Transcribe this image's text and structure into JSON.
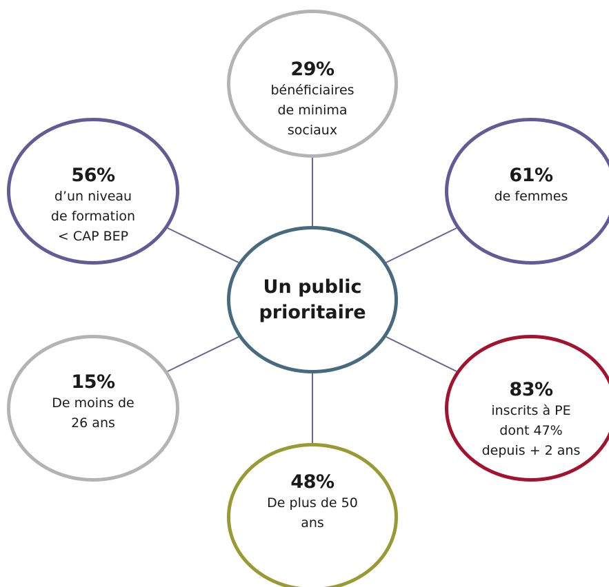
{
  "colors": {
    "connector": "#6a6497",
    "center_border": "#486a7e",
    "purple_border": "#615b96",
    "gray_border": "#b3b3b3",
    "red_border": "#a3122e",
    "olive_border": "#999a34"
  },
  "center": {
    "label": "Un public\nprioritaire"
  },
  "stats": {
    "top": {
      "percent": "29%",
      "text": "bénéficiaires\nde minima\nsociaux"
    },
    "upper_left": {
      "percent": "56%",
      "text": "d’un niveau\nde formation\n< CAP BEP"
    },
    "upper_right": {
      "percent": "61%",
      "text": "de femmes"
    },
    "lower_left": {
      "percent": "15%",
      "text": "De moins de\n26 ans"
    },
    "lower_right": {
      "percent": "83%",
      "text": "inscrits à PE\ndont 47%\ndepuis + 2 ans"
    },
    "bottom": {
      "percent": "48%",
      "text": "De plus de 50\nans"
    }
  }
}
